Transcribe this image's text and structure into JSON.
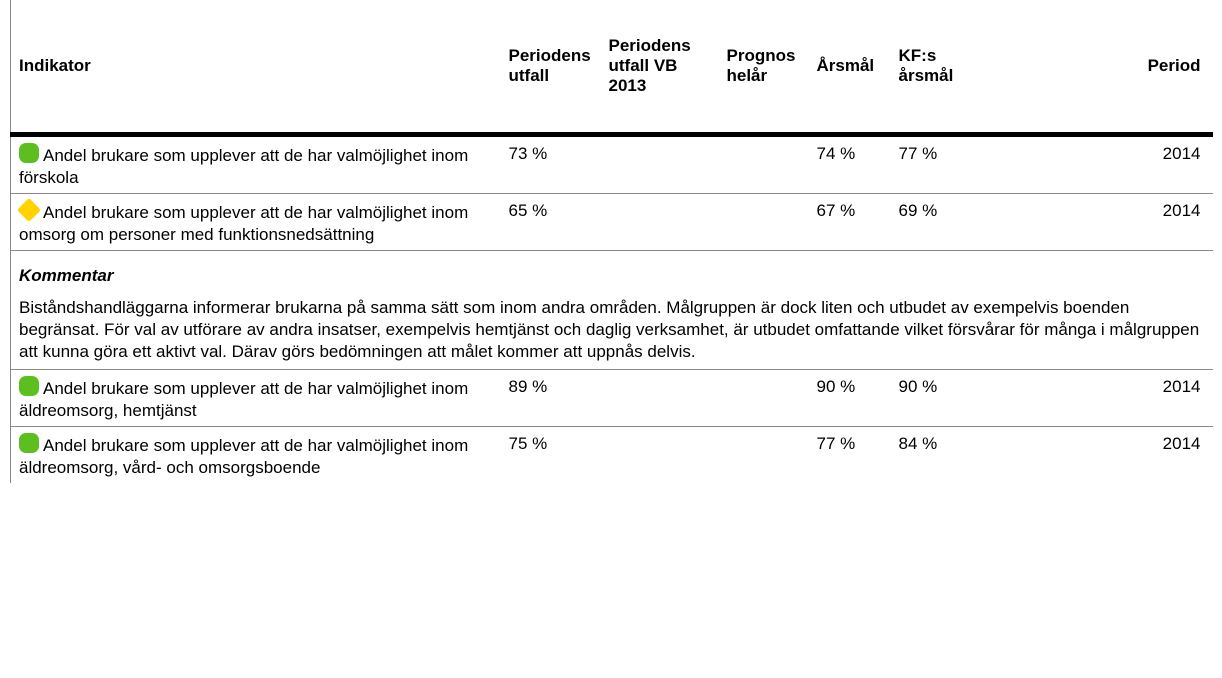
{
  "table": {
    "headers": [
      "Indikator",
      "Periodens utfall",
      "Periodens utfall VB 2013",
      "Prognos helår",
      "Årsmål",
      "KF:s årsmål",
      "Period"
    ],
    "rows": [
      {
        "status_color": "#5cbf1f",
        "status_shape": "round",
        "cells": [
          "Andel brukare som upplever att de har valmöjlighet inom förskola",
          "73 %",
          "",
          "",
          "74 %",
          "77 %",
          "2014"
        ]
      },
      {
        "status_color": "#ffd200",
        "status_shape": "diamond",
        "cells": [
          "Andel brukare som upplever att de har valmöjlighet inom omsorg om personer med funktionsnedsättning",
          "65 %",
          "",
          "",
          "67 %",
          "69 %",
          "2014"
        ],
        "comment": {
          "title": "Kommentar",
          "text": "Biståndshandläggarna informerar brukarna på samma sätt som inom andra områden. Målgruppen är dock liten och utbudet av exempelvis boenden begränsat. För val av utförare av andra insatser, exempelvis hemtjänst och daglig verksamhet, är utbudet omfattande vilket försvårar för många i målgruppen att kunna göra ett aktivt val. Därav görs bedömningen att målet kommer att uppnås delvis."
        }
      },
      {
        "status_color": "#5cbf1f",
        "status_shape": "round",
        "cells": [
          "Andel brukare som upplever att de har valmöjlighet inom äldreomsorg, hemtjänst",
          "89 %",
          "",
          "",
          "90 %",
          "90 %",
          "2014"
        ]
      },
      {
        "status_color": "#5cbf1f",
        "status_shape": "round",
        "cells": [
          "Andel brukare som upplever att de har valmöjlighet inom äldreomsorg, vård- och omsorgsboende",
          "75 %",
          "",
          "",
          "77 %",
          "84 %",
          "2014"
        ]
      }
    ]
  }
}
